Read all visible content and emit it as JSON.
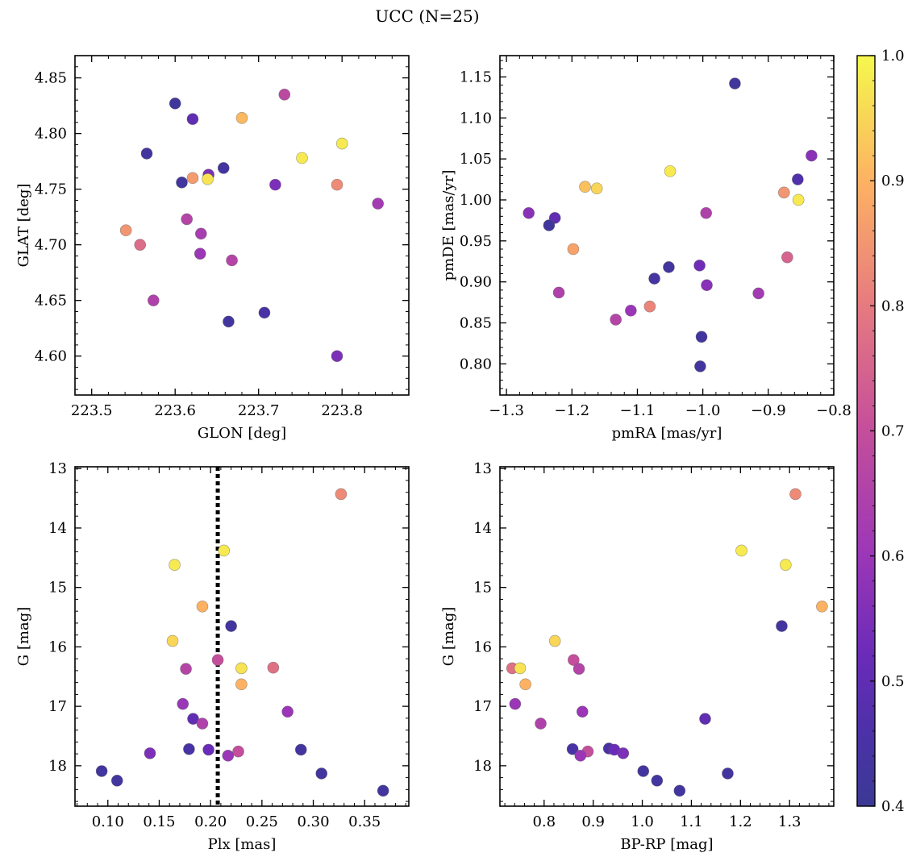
{
  "title": "UCC (N=25)",
  "colorbar": {
    "range": [
      0.4,
      1.0
    ],
    "ticks": [
      "0.4",
      "0.5",
      "0.6",
      "0.7",
      "0.8",
      "0.9",
      "1.0"
    ],
    "colormap": "plasma"
  },
  "chart_data": [
    {
      "type": "scatter",
      "xlabel": "GLON [deg]",
      "ylabel": "GLAT [deg]",
      "xlim": [
        223.48,
        223.88
      ],
      "ylim": [
        4.565,
        4.87
      ],
      "xticks": [
        "223.5",
        "223.6",
        "223.7",
        "223.8"
      ],
      "yticks": [
        "4.60",
        "4.65",
        "4.70",
        "4.75",
        "4.80",
        "4.85"
      ],
      "points": [
        {
          "x": 223.6,
          "y": 4.827,
          "c": 0.42
        },
        {
          "x": 223.621,
          "y": 4.813,
          "c": 0.5
        },
        {
          "x": 223.731,
          "y": 4.835,
          "c": 0.68
        },
        {
          "x": 223.68,
          "y": 4.814,
          "c": 0.91
        },
        {
          "x": 223.566,
          "y": 4.782,
          "c": 0.43
        },
        {
          "x": 223.8,
          "y": 4.791,
          "c": 0.98
        },
        {
          "x": 223.752,
          "y": 4.778,
          "c": 0.98
        },
        {
          "x": 223.658,
          "y": 4.769,
          "c": 0.43
        },
        {
          "x": 223.64,
          "y": 4.763,
          "c": 0.55
        },
        {
          "x": 223.621,
          "y": 4.76,
          "c": 0.86
        },
        {
          "x": 223.639,
          "y": 4.759,
          "c": 0.97
        },
        {
          "x": 223.608,
          "y": 4.756,
          "c": 0.43
        },
        {
          "x": 223.72,
          "y": 4.754,
          "c": 0.55
        },
        {
          "x": 223.794,
          "y": 4.754,
          "c": 0.83
        },
        {
          "x": 223.843,
          "y": 4.737,
          "c": 0.62
        },
        {
          "x": 223.614,
          "y": 4.723,
          "c": 0.66
        },
        {
          "x": 223.541,
          "y": 4.713,
          "c": 0.85
        },
        {
          "x": 223.631,
          "y": 4.71,
          "c": 0.63
        },
        {
          "x": 223.558,
          "y": 4.7,
          "c": 0.77
        },
        {
          "x": 223.63,
          "y": 4.692,
          "c": 0.6
        },
        {
          "x": 223.668,
          "y": 4.686,
          "c": 0.66
        },
        {
          "x": 223.574,
          "y": 4.65,
          "c": 0.65
        },
        {
          "x": 223.707,
          "y": 4.639,
          "c": 0.45
        },
        {
          "x": 223.664,
          "y": 4.631,
          "c": 0.43
        },
        {
          "x": 223.794,
          "y": 4.6,
          "c": 0.55
        }
      ]
    },
    {
      "type": "scatter",
      "xlabel": "pmRA [mas/yr]",
      "ylabel": "pmDE [mas/yr]",
      "xlim": [
        -1.31,
        -0.8
      ],
      "ylim": [
        0.762,
        1.176
      ],
      "xticks": [
        "−1.3",
        "−1.2",
        "−1.1",
        "−1.0",
        "−0.9",
        "−0.8"
      ],
      "yticks": [
        "0.80",
        "0.85",
        "0.90",
        "0.95",
        "1.00",
        "1.05",
        "1.10",
        "1.15"
      ],
      "points": [
        {
          "x": -0.951,
          "y": 1.142,
          "c": 0.42
        },
        {
          "x": -0.834,
          "y": 1.054,
          "c": 0.57
        },
        {
          "x": -1.05,
          "y": 1.035,
          "c": 0.98
        },
        {
          "x": -0.855,
          "y": 1.025,
          "c": 0.47
        },
        {
          "x": -1.18,
          "y": 1.016,
          "c": 0.92
        },
        {
          "x": -1.162,
          "y": 1.014,
          "c": 0.95
        },
        {
          "x": -0.876,
          "y": 1.009,
          "c": 0.85
        },
        {
          "x": -0.854,
          "y": 1.0,
          "c": 0.98
        },
        {
          "x": -0.995,
          "y": 0.984,
          "c": 0.65
        },
        {
          "x": -1.266,
          "y": 0.984,
          "c": 0.57
        },
        {
          "x": -1.226,
          "y": 0.978,
          "c": 0.5
        },
        {
          "x": -1.235,
          "y": 0.969,
          "c": 0.42
        },
        {
          "x": -1.198,
          "y": 0.94,
          "c": 0.87
        },
        {
          "x": -0.871,
          "y": 0.93,
          "c": 0.75
        },
        {
          "x": -1.052,
          "y": 0.918,
          "c": 0.43
        },
        {
          "x": -1.005,
          "y": 0.92,
          "c": 0.53
        },
        {
          "x": -1.074,
          "y": 0.904,
          "c": 0.44
        },
        {
          "x": -0.994,
          "y": 0.896,
          "c": 0.57
        },
        {
          "x": -1.22,
          "y": 0.887,
          "c": 0.65
        },
        {
          "x": -0.915,
          "y": 0.886,
          "c": 0.62
        },
        {
          "x": -1.081,
          "y": 0.87,
          "c": 0.82
        },
        {
          "x": -1.11,
          "y": 0.865,
          "c": 0.6
        },
        {
          "x": -1.133,
          "y": 0.854,
          "c": 0.66
        },
        {
          "x": -1.002,
          "y": 0.833,
          "c": 0.43
        },
        {
          "x": -1.004,
          "y": 0.797,
          "c": 0.43
        }
      ]
    },
    {
      "type": "scatter",
      "xlabel": "Plx [mas]",
      "ylabel": "G [mag]",
      "xlim": [
        0.068,
        0.393
      ],
      "ylim": [
        18.68,
        12.97
      ],
      "y_inverted": true,
      "xticks": [
        "0.10",
        "0.15",
        "0.20",
        "0.25",
        "0.30",
        "0.35"
      ],
      "yticks": [
        "13",
        "14",
        "15",
        "16",
        "17",
        "18"
      ],
      "vline": {
        "x": 0.207,
        "style": "dotted",
        "color": "#000000"
      },
      "points": [
        {
          "x": 0.327,
          "y": 13.43,
          "c": 0.83
        },
        {
          "x": 0.213,
          "y": 14.38,
          "c": 0.98
        },
        {
          "x": 0.165,
          "y": 14.62,
          "c": 0.98
        },
        {
          "x": 0.192,
          "y": 15.32,
          "c": 0.9
        },
        {
          "x": 0.22,
          "y": 15.65,
          "c": 0.43
        },
        {
          "x": 0.163,
          "y": 15.9,
          "c": 0.95
        },
        {
          "x": 0.207,
          "y": 16.22,
          "c": 0.7
        },
        {
          "x": 0.176,
          "y": 16.37,
          "c": 0.66
        },
        {
          "x": 0.23,
          "y": 16.36,
          "c": 0.97
        },
        {
          "x": 0.261,
          "y": 16.35,
          "c": 0.78
        },
        {
          "x": 0.23,
          "y": 16.63,
          "c": 0.9
        },
        {
          "x": 0.173,
          "y": 16.96,
          "c": 0.6
        },
        {
          "x": 0.275,
          "y": 17.09,
          "c": 0.6
        },
        {
          "x": 0.183,
          "y": 17.21,
          "c": 0.5
        },
        {
          "x": 0.192,
          "y": 17.29,
          "c": 0.65
        },
        {
          "x": 0.179,
          "y": 17.72,
          "c": 0.45
        },
        {
          "x": 0.198,
          "y": 17.73,
          "c": 0.52
        },
        {
          "x": 0.227,
          "y": 17.76,
          "c": 0.7
        },
        {
          "x": 0.288,
          "y": 17.73,
          "c": 0.43
        },
        {
          "x": 0.141,
          "y": 17.79,
          "c": 0.55
        },
        {
          "x": 0.217,
          "y": 17.83,
          "c": 0.6
        },
        {
          "x": 0.094,
          "y": 18.09,
          "c": 0.43
        },
        {
          "x": 0.308,
          "y": 18.13,
          "c": 0.43
        },
        {
          "x": 0.109,
          "y": 18.25,
          "c": 0.43
        },
        {
          "x": 0.368,
          "y": 18.42,
          "c": 0.43
        }
      ]
    },
    {
      "type": "scatter",
      "xlabel": "BP-RP [mag]",
      "ylabel": "G [mag]",
      "xlim": [
        0.71,
        1.39
      ],
      "ylim": [
        18.68,
        12.97
      ],
      "y_inverted": true,
      "xticks": [
        "0.8",
        "0.9",
        "1.0",
        "1.1",
        "1.2",
        "1.3"
      ],
      "yticks": [
        "13",
        "14",
        "15",
        "16",
        "17",
        "18"
      ],
      "points": [
        {
          "x": 1.312,
          "y": 13.43,
          "c": 0.83
        },
        {
          "x": 1.202,
          "y": 14.38,
          "c": 0.98
        },
        {
          "x": 1.292,
          "y": 14.62,
          "c": 0.98
        },
        {
          "x": 1.366,
          "y": 15.32,
          "c": 0.9
        },
        {
          "x": 1.284,
          "y": 15.65,
          "c": 0.43
        },
        {
          "x": 0.822,
          "y": 15.9,
          "c": 0.95
        },
        {
          "x": 0.86,
          "y": 16.22,
          "c": 0.7
        },
        {
          "x": 0.871,
          "y": 16.37,
          "c": 0.66
        },
        {
          "x": 0.735,
          "y": 16.36,
          "c": 0.78
        },
        {
          "x": 0.751,
          "y": 16.36,
          "c": 0.97
        },
        {
          "x": 0.762,
          "y": 16.63,
          "c": 0.9
        },
        {
          "x": 0.741,
          "y": 16.96,
          "c": 0.6
        },
        {
          "x": 0.878,
          "y": 17.09,
          "c": 0.6
        },
        {
          "x": 1.128,
          "y": 17.21,
          "c": 0.5
        },
        {
          "x": 0.793,
          "y": 17.29,
          "c": 0.65
        },
        {
          "x": 0.858,
          "y": 17.72,
          "c": 0.45
        },
        {
          "x": 0.932,
          "y": 17.71,
          "c": 0.45
        },
        {
          "x": 0.943,
          "y": 17.73,
          "c": 0.52
        },
        {
          "x": 0.889,
          "y": 17.76,
          "c": 0.7
        },
        {
          "x": 0.961,
          "y": 17.79,
          "c": 0.55
        },
        {
          "x": 0.874,
          "y": 17.83,
          "c": 0.6
        },
        {
          "x": 1.002,
          "y": 18.09,
          "c": 0.43
        },
        {
          "x": 1.174,
          "y": 18.13,
          "c": 0.43
        },
        {
          "x": 1.03,
          "y": 18.25,
          "c": 0.43
        },
        {
          "x": 1.076,
          "y": 18.42,
          "c": 0.43
        }
      ]
    }
  ]
}
